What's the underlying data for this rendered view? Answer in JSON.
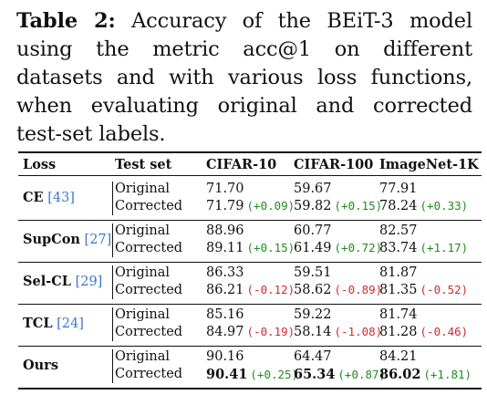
{
  "caption": {
    "label": "Table 2:",
    "text": " Accuracy of the BEiT-3 model using the metric acc@1 on different datasets and with various loss functions, when evaluating original and corrected test-set labels."
  },
  "headers": {
    "loss": "Loss",
    "test_set": "Test set",
    "cifar10": "CIFAR-10",
    "cifar100": "CIFAR-100",
    "imagenet": "ImageNet-1K"
  },
  "groups": [
    {
      "loss": "CE",
      "ref": "[43]",
      "original": {
        "label": "Original",
        "cifar10": "71.70",
        "cifar100": "59.67",
        "imagenet": "77.91"
      },
      "corrected": {
        "label": "Corrected",
        "cifar10": "71.79",
        "cifar10_delta": "(+0.09)",
        "cifar100": "59.82",
        "cifar100_delta": "(+0.15)",
        "imagenet": "78.24",
        "imagenet_delta": "(+0.33)"
      }
    },
    {
      "loss": "SupCon",
      "ref": "[27]",
      "original": {
        "label": "Original",
        "cifar10": "88.96",
        "cifar100": "60.77",
        "imagenet": "82.57"
      },
      "corrected": {
        "label": "Corrected",
        "cifar10": "89.11",
        "cifar10_delta": "(+0.15)",
        "cifar100": "61.49",
        "cifar100_delta": "(+0.72)",
        "imagenet": "83.74",
        "imagenet_delta": "(+1.17)"
      }
    },
    {
      "loss": "Sel-CL",
      "ref": "[29]",
      "original": {
        "label": "Original",
        "cifar10": "86.33",
        "cifar100": "59.51",
        "imagenet": "81.87"
      },
      "corrected": {
        "label": "Corrected",
        "cifar10": "86.21",
        "cifar10_delta": "(-0.12)",
        "cifar100": "58.62",
        "cifar100_delta": "(-0.89)",
        "imagenet": "81.35",
        "imagenet_delta": "(-0.52)"
      }
    },
    {
      "loss": "TCL",
      "ref": "[24]",
      "original": {
        "label": "Original",
        "cifar10": "85.16",
        "cifar100": "59.22",
        "imagenet": "81.74"
      },
      "corrected": {
        "label": "Corrected",
        "cifar10": "84.97",
        "cifar10_delta": "(-0.19)",
        "cifar100": "58.14",
        "cifar100_delta": "(-1.08)",
        "imagenet": "81.28",
        "imagenet_delta": "(-0.46)"
      }
    },
    {
      "loss": "Ours",
      "ref": "",
      "original": {
        "label": "Original",
        "cifar10": "90.16",
        "cifar100": "64.47",
        "imagenet": "84.21"
      },
      "corrected": {
        "label": "Corrected",
        "cifar10": "90.41",
        "cifar10_delta": "(+0.25)",
        "cifar100": "65.34",
        "cifar100_delta": "(+0.87)",
        "imagenet": "86.02",
        "imagenet_delta": "(+1.81)"
      }
    }
  ],
  "colors": {
    "positive_delta": "#1e8c1e",
    "negative_delta": "#d42a2a",
    "citation": "#3a78c8"
  }
}
